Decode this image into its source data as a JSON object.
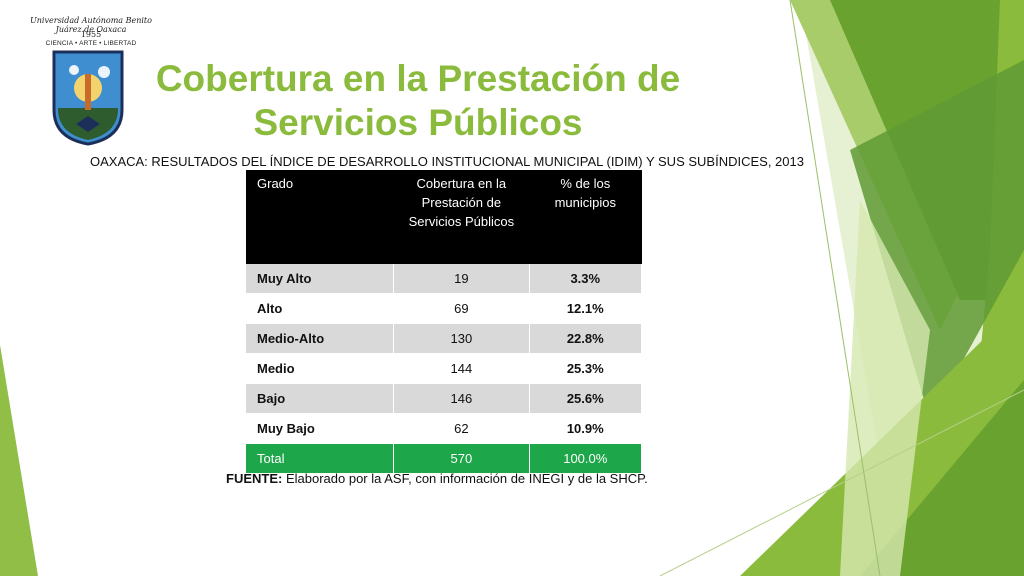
{
  "logo": {
    "arc_text": "Universidad Autónoma Benito Juárez de Oaxaca",
    "year": "1955",
    "motto": "CIENCIA • ARTE • LIBERTAD"
  },
  "title": {
    "line1": "Cobertura en la Prestación de",
    "line2": "Servicios Públicos"
  },
  "subtitle": "OAXACA: RESULTADOS DEL ÍNDICE DE DESARROLLO INSTITUCIONAL MUNICIPAL (IDIM) Y SUS SUBÍNDICES, 2013",
  "table": {
    "headers": [
      "Grado",
      "Cobertura en la Prestación de Servicios Públicos",
      "% de los municipios"
    ],
    "rows": [
      {
        "grado": "Muy Alto",
        "cobertura": "19",
        "pct": "3.3%"
      },
      {
        "grado": "Alto",
        "cobertura": "69",
        "pct": "12.1%"
      },
      {
        "grado": "Medio-Alto",
        "cobertura": "130",
        "pct": "22.8%"
      },
      {
        "grado": "Medio",
        "cobertura": "144",
        "pct": "25.3%"
      },
      {
        "grado": "Bajo",
        "cobertura": "146",
        "pct": "25.6%"
      },
      {
        "grado": "Muy Bajo",
        "cobertura": "62",
        "pct": "10.9%"
      }
    ],
    "total": {
      "grado": "Total",
      "cobertura": "570",
      "pct": "100.0%"
    }
  },
  "source": {
    "label": "FUENTE:",
    "text": " Elaborado por la ASF, con información de INEGI y de la SHCP."
  },
  "colors": {
    "title": "#8bbb3c",
    "header_bg": "#000000",
    "total_bg": "#1ea64a",
    "accent_greens": [
      "#8bbb3c",
      "#6aa230",
      "#c5dd8a",
      "#4e8f2a"
    ]
  }
}
